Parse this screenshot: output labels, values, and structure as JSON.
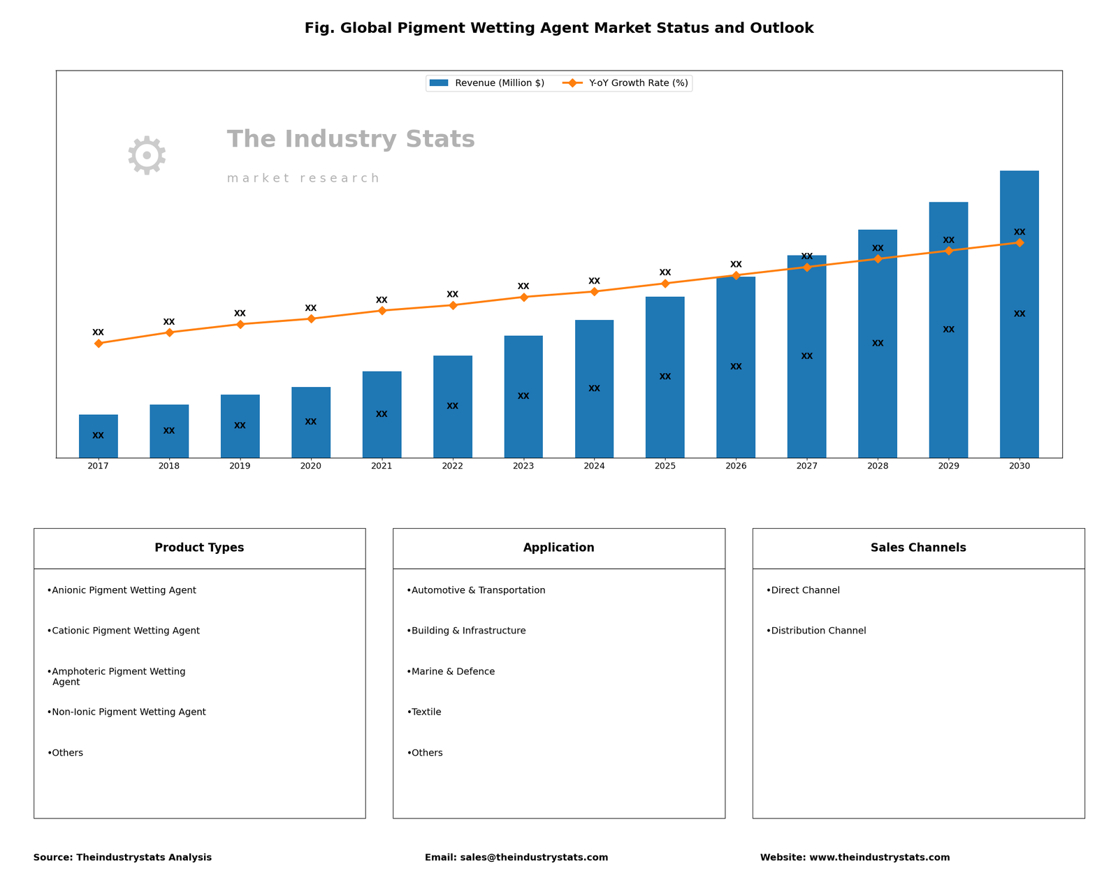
{
  "chart_data": {
    "type": "bar",
    "title": "Fig. Global Pigment Wetting Agent Market Status and Outlook",
    "categories": [
      "2017",
      "2018",
      "2019",
      "2020",
      "2021",
      "2022",
      "2023",
      "2024",
      "2025",
      "2026",
      "2027",
      "2028",
      "2029",
      "2030"
    ],
    "ylim": [
      0,
      197.1
    ],
    "yticks": [],
    "y2lim": [
      0,
      14.22
    ],
    "y2ticks": [],
    "tick_labels": "x",
    "grid": false,
    "legend": "upper center",
    "data_labels": true,
    "series": [
      {
        "name": "Revenue (Million $)",
        "type": "bar",
        "color": "#1f77b4",
        "values": [
          22,
          27,
          32,
          36,
          44,
          52,
          62,
          70,
          82,
          92,
          103,
          116,
          130,
          146
        ],
        "value_labels": [
          "XX",
          "XX",
          "XX",
          "XX",
          "XX",
          "XX",
          "XX",
          "XX",
          "XX",
          "XX",
          "XX",
          "XX",
          "XX",
          "XX"
        ]
      },
      {
        "name": "Y-oY Growth Rate (%)",
        "type": "line",
        "axis": "y2",
        "color": "#ff7f0e",
        "marker": "diamond",
        "values": [
          4.2,
          4.6,
          4.9,
          5.1,
          5.4,
          5.6,
          5.9,
          6.1,
          6.4,
          6.7,
          7.0,
          7.3,
          7.6,
          7.9
        ],
        "value_labels": [
          "XX",
          "XX",
          "XX",
          "XX",
          "XX",
          "XX",
          "XX",
          "XX",
          "XX",
          "XX",
          "XX",
          "XX",
          "XX",
          "XX"
        ]
      }
    ],
    "annotations": {
      "watermark": [
        "The Industry Stats",
        "m a r k e t   r e s e a r c h",
        "⚙"
      ],
      "panels": [
        {
          "header": "Product Types",
          "items": [
            "•Anionic Pigment Wetting Agent",
            "•Cationic Pigment Wetting Agent",
            "•Amphoteric Pigment Wetting\n  Agent",
            "•Non-Ionic Pigment Wetting Agent",
            "•Others"
          ]
        },
        {
          "header": "Application",
          "items": [
            "•Automotive & Transportation",
            "•Building & Infrastructure",
            "•Marine & Defence",
            "•Textile",
            "•Others"
          ]
        },
        {
          "header": "Sales Channels",
          "items": [
            "•Direct Channel",
            "•Distribution Channel"
          ]
        }
      ],
      "footer": [
        "Source: Theindustrystats Analysis",
        "Email: sales@theindustrystats.com",
        "Website: www.theindustrystats.com"
      ]
    }
  }
}
